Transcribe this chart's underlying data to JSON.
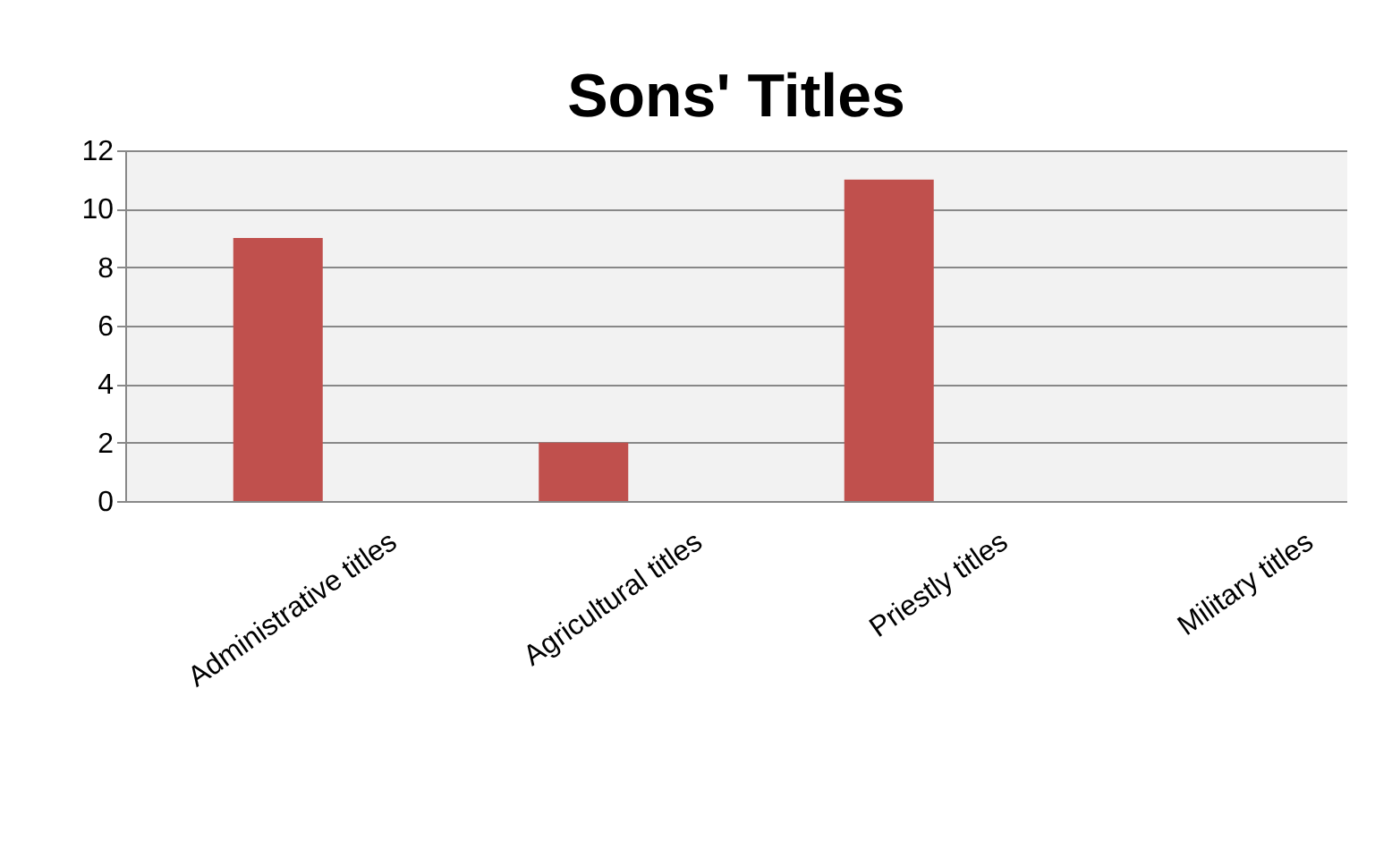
{
  "chart_data": {
    "type": "bar",
    "title": "Sons' Titles",
    "categories": [
      "Administrative titles",
      "Agricultural titles",
      "Priestly titles",
      "Military titles"
    ],
    "values": [
      9,
      2,
      11,
      0
    ],
    "color": "#c0504d",
    "ylim": [
      0,
      12
    ],
    "yticks": [
      0,
      2,
      4,
      6,
      8,
      10,
      12
    ],
    "grid": "y"
  }
}
